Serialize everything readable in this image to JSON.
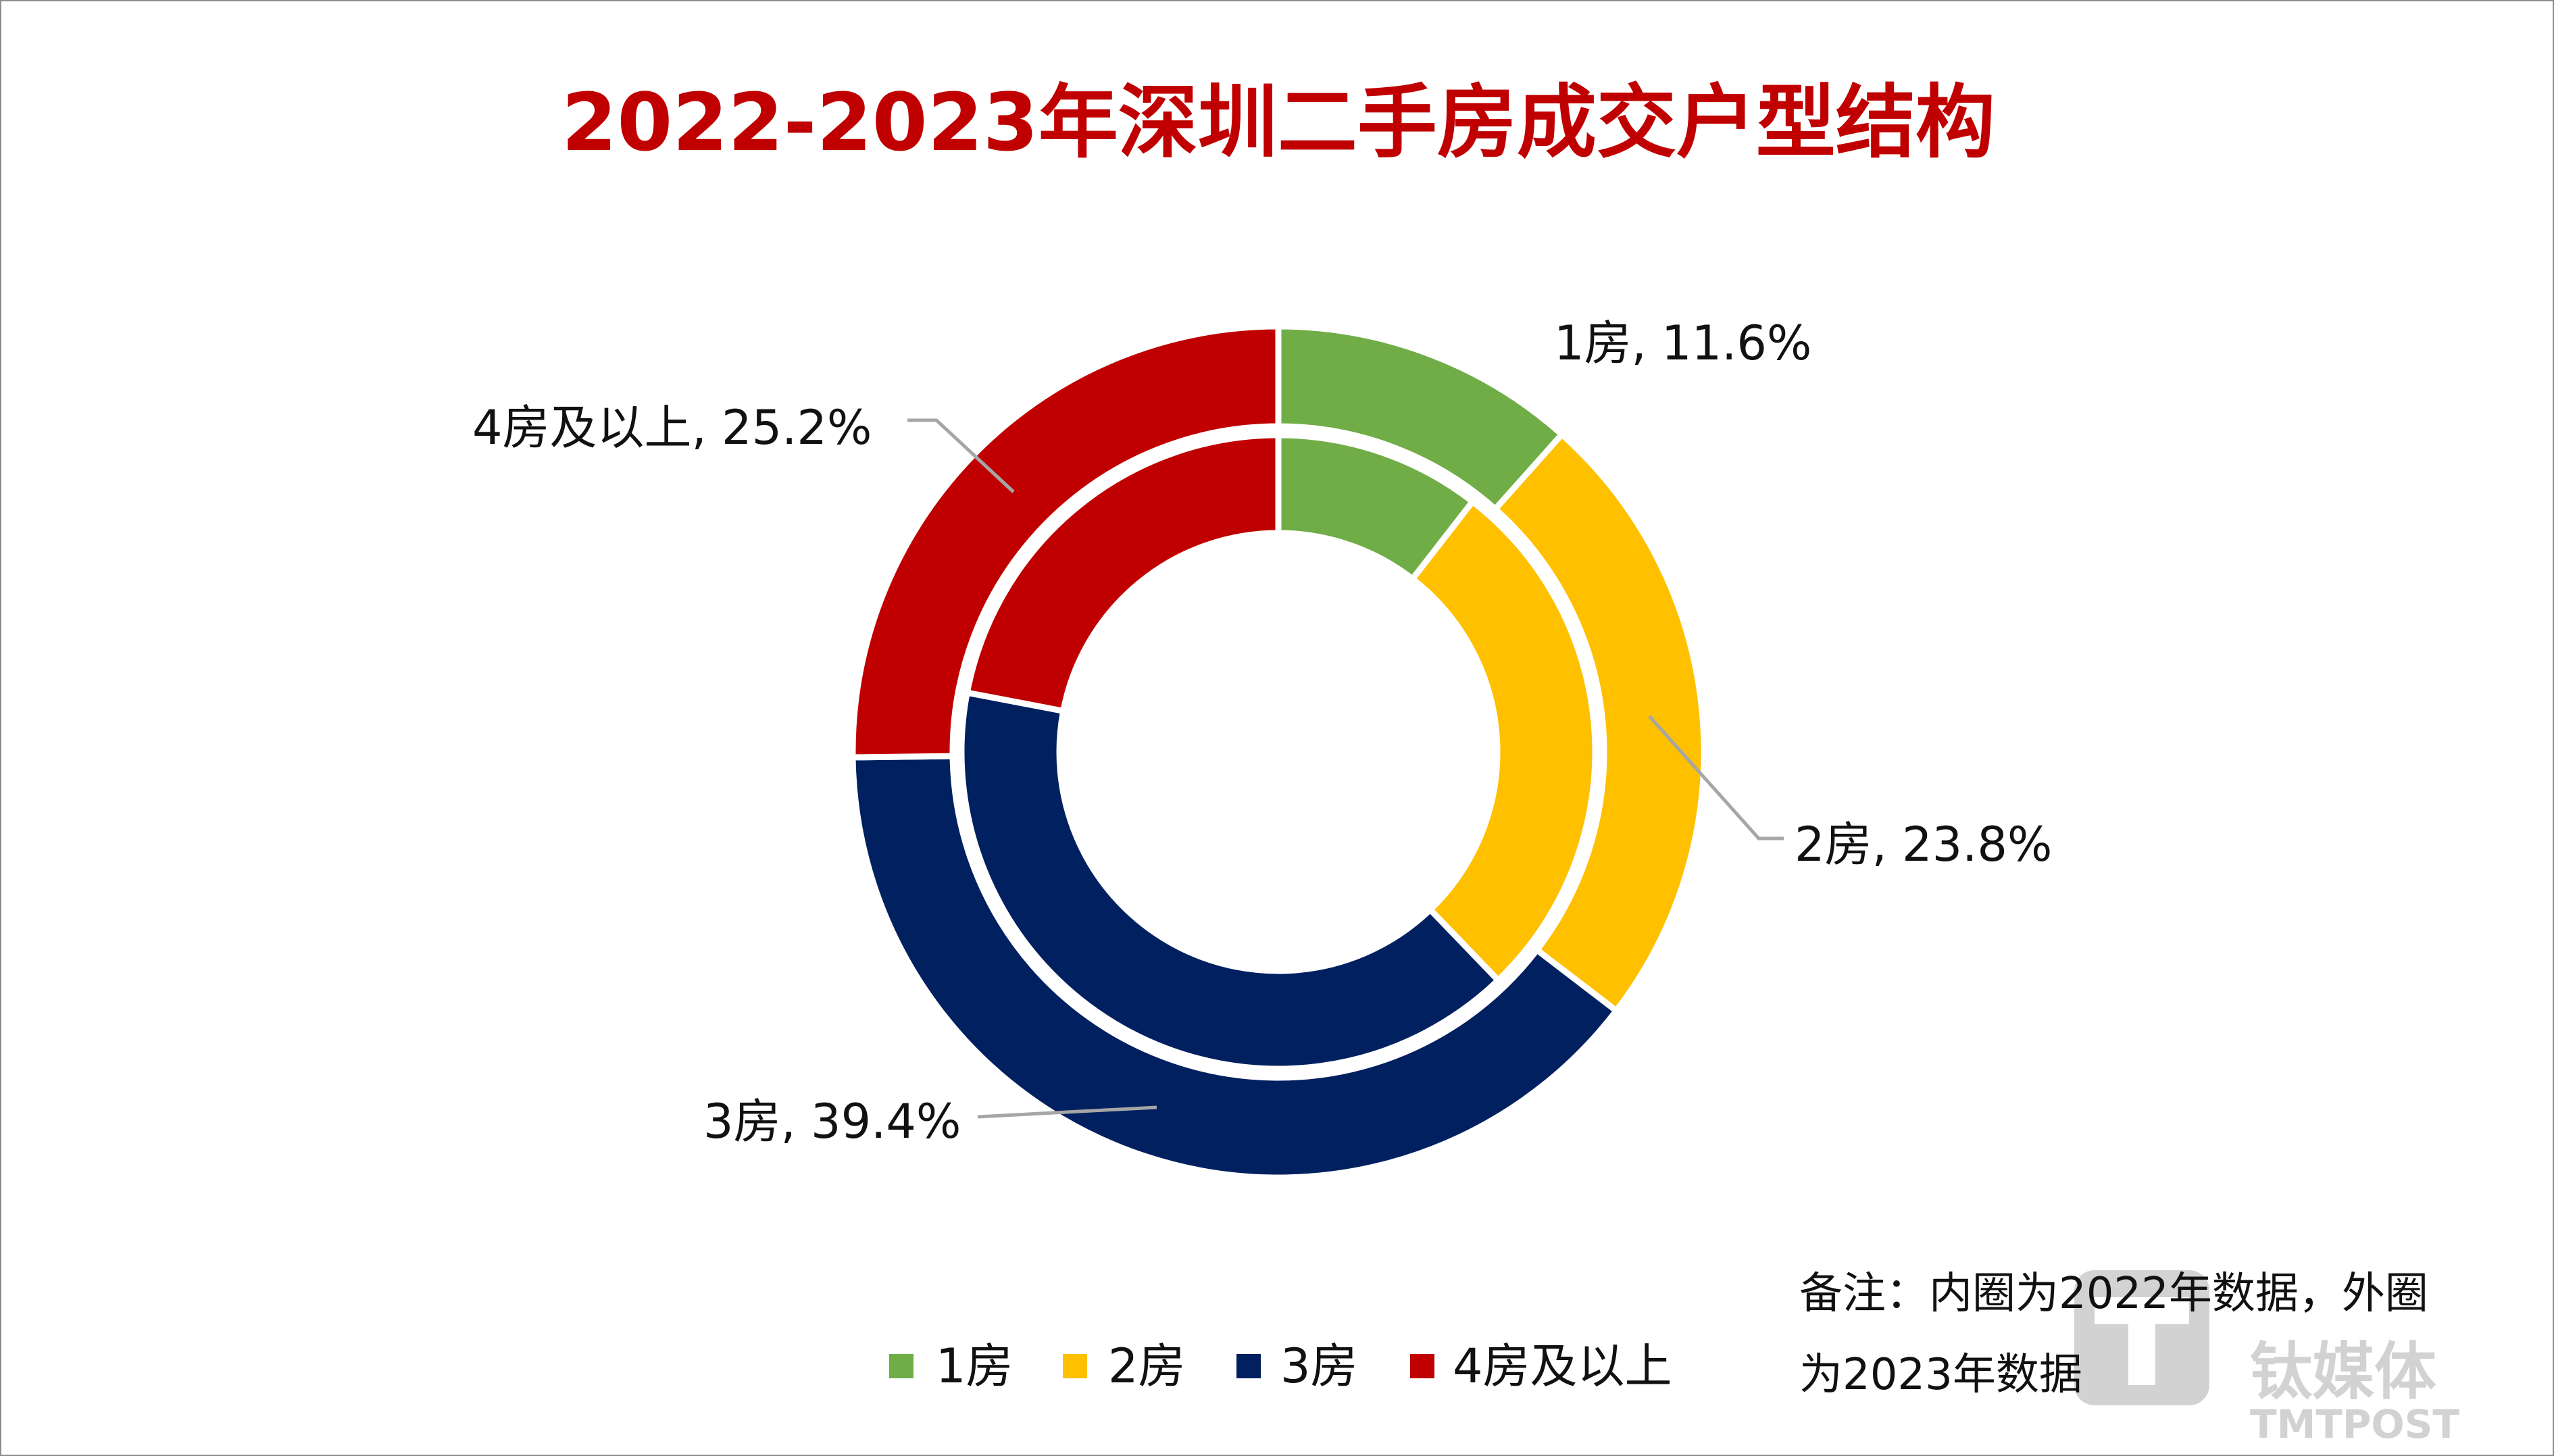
{
  "chart_data": {
    "type": "pie",
    "subtype": "nested-donut",
    "title": "2022-2023年深圳二手房成交户型结构",
    "title_color": "#C00000",
    "categories": [
      "1房",
      "2房",
      "3房",
      "4房及以上"
    ],
    "colors": [
      "#70AD47",
      "#FFC000",
      "#002060",
      "#C00000"
    ],
    "series": [
      {
        "ring": "outer",
        "values": [
          11.6,
          23.8,
          39.4,
          25.2
        ],
        "labels": [
          "1房, 11.6%",
          "2房, 23.8%",
          "3房, 39.4%",
          "4房及以上, 25.2%"
        ]
      },
      {
        "ring": "inner",
        "values": [
          10.5,
          27.3,
          40.2,
          22.0
        ]
      }
    ],
    "legend": {
      "placement": "bottom",
      "items": [
        "1房",
        "2房",
        "3房",
        "4房及以上"
      ]
    },
    "note": {
      "line1": "备注：内圈为2022年数据，外圈",
      "line2": "为2023年数据"
    }
  },
  "watermark": {
    "text_cn": "钛媒体",
    "text_en": "TMTPOST"
  }
}
